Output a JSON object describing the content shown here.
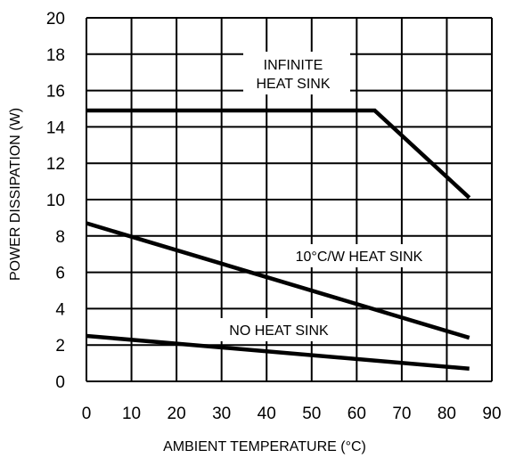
{
  "chart_data": {
    "type": "line",
    "xlabel": "AMBIENT TEMPERATURE (°C)",
    "ylabel": "POWER DISSIPATION (W)",
    "xlim": [
      0,
      90
    ],
    "ylim": [
      0,
      20
    ],
    "x_ticks": [
      "0",
      "10",
      "20",
      "30",
      "40",
      "50",
      "60",
      "70",
      "80",
      "90"
    ],
    "y_ticks": [
      "0",
      "2",
      "4",
      "6",
      "8",
      "10",
      "12",
      "14",
      "16",
      "18",
      "20"
    ],
    "grid": true,
    "series": [
      {
        "label": "INFINITE HEAT SINK",
        "x": [
          0,
          64,
          85
        ],
        "y": [
          14.9,
          14.9,
          10.1
        ]
      },
      {
        "label": "10°C/W HEAT SINK",
        "x": [
          0,
          85
        ],
        "y": [
          8.7,
          2.4
        ]
      },
      {
        "label": "NO HEAT SINK",
        "x": [
          0,
          85
        ],
        "y": [
          2.5,
          0.7
        ]
      }
    ],
    "annotations": [
      {
        "lines": [
          "INFINITE",
          "HEAT SINK"
        ],
        "series": 0
      },
      {
        "lines": [
          "10°C/W HEAT SINK"
        ],
        "series": 1
      },
      {
        "lines": [
          "NO HEAT SINK"
        ],
        "series": 2
      }
    ]
  }
}
